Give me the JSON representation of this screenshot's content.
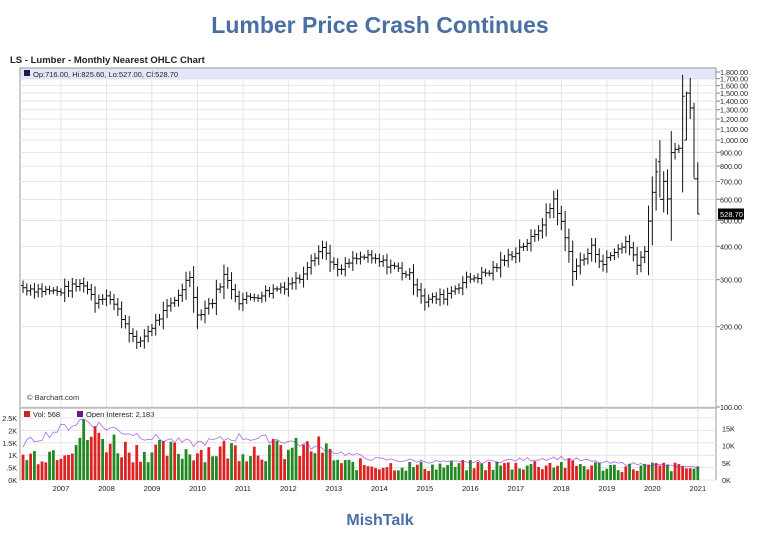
{
  "headline": "Lumber Price Crash Continues",
  "chart_title": "LS - Lumber - Monthly Nearest OHLC Chart",
  "footer": "MishTalk",
  "colors": {
    "accent": "#4a6fa5",
    "up": "#228822",
    "down": "#dd2222",
    "band": "#e3e7f9",
    "grid": "#e4e4e4"
  },
  "chart_data": [
    {
      "type": "ohlc",
      "info": "Op:716.00, Hi:825.60, Lo:527.00, Cl:528.70",
      "last_price_label": "528.70",
      "credit": "© Barchart.com",
      "y_scale": "log",
      "ylim": [
        100,
        1800
      ],
      "y_ticks": [
        "100.00",
        "200.00",
        "300.00",
        "400.00",
        "500.00",
        "600.00",
        "700.00",
        "800.00",
        "900.00",
        "1,000.00",
        "1,100.00",
        "1,200.00",
        "1,300.00",
        "1,400.00",
        "1,500.00",
        "1,600.00",
        "1,700.00",
        "1,800.00"
      ],
      "grid": true,
      "x_ticks": [
        "2007",
        "2008",
        "2009",
        "2010",
        "2011",
        "2012",
        "2013",
        "2014",
        "2015",
        "2016",
        "2017",
        "2018",
        "2019",
        "2020",
        "2021"
      ],
      "anchors": [
        [
          "2006-09",
          280
        ],
        [
          "2007-06",
          270
        ],
        [
          "2008-01",
          290
        ],
        [
          "2008-04",
          250
        ],
        [
          "2008-07",
          265
        ],
        [
          "2009-03",
          170
        ],
        [
          "2009-07",
          200
        ],
        [
          "2010-01",
          250
        ],
        [
          "2010-05",
          310
        ],
        [
          "2010-07",
          220
        ],
        [
          "2010-11",
          250
        ],
        [
          "2011-02",
          310
        ],
        [
          "2011-06",
          250
        ],
        [
          "2011-12",
          265
        ],
        [
          "2012-06",
          285
        ],
        [
          "2012-10",
          305
        ],
        [
          "2013-01",
          360
        ],
        [
          "2013-04",
          395
        ],
        [
          "2013-08",
          320
        ],
        [
          "2013-12",
          355
        ],
        [
          "2014-03",
          365
        ],
        [
          "2014-10",
          340
        ],
        [
          "2015-03",
          310
        ],
        [
          "2015-07",
          250
        ],
        [
          "2015-12",
          260
        ],
        [
          "2016-06",
          300
        ],
        [
          "2016-12",
          320
        ],
        [
          "2017-05",
          365
        ],
        [
          "2017-12",
          435
        ],
        [
          "2018-03",
          520
        ],
        [
          "2018-05",
          600
        ],
        [
          "2018-08",
          430
        ],
        [
          "2018-10",
          330
        ],
        [
          "2019-01",
          360
        ],
        [
          "2019-03",
          395
        ],
        [
          "2019-06",
          345
        ],
        [
          "2019-09",
          380
        ],
        [
          "2019-12",
          415
        ],
        [
          "2020-03",
          350
        ],
        [
          "2020-05",
          380
        ],
        [
          "2020-07",
          640
        ],
        [
          "2020-09",
          840
        ],
        [
          "2020-11",
          590
        ],
        [
          "2020-12",
          880
        ],
        [
          "2021-02",
          960
        ],
        [
          "2021-03",
          1450
        ],
        [
          "2021-04",
          1450
        ],
        [
          "2021-05",
          1320
        ],
        [
          "2021-06",
          716
        ],
        [
          "2021-07",
          528.7
        ]
      ],
      "highlight_bars": [
        {
          "date": "2020-09",
          "open": 830,
          "high": 1000,
          "low": 610,
          "close": 600
        },
        {
          "date": "2021-04",
          "open": 1000,
          "high": 1520,
          "low": 1000,
          "close": 1500
        },
        {
          "date": "2021-05",
          "open": 1500,
          "high": 1711,
          "low": 1200,
          "close": 1320
        },
        {
          "date": "2021-06",
          "open": 1320,
          "high": 1380,
          "low": 720,
          "close": 716
        },
        {
          "date": "2021-07",
          "open": 716,
          "high": 825.6,
          "low": 527,
          "close": 528.7
        }
      ],
      "ohlc": [
        [
          "2006-09",
          285,
          300,
          265,
          280
        ],
        [
          "2006-10",
          280,
          295,
          255,
          268
        ],
        [
          "2007-03",
          265,
          280,
          245,
          262
        ],
        [
          "2007-09",
          270,
          290,
          255,
          285
        ],
        [
          "2008-01",
          285,
          310,
          270,
          295
        ],
        [
          "2008-04",
          270,
          280,
          230,
          245
        ],
        [
          "2008-07",
          255,
          280,
          245,
          265
        ],
        [
          "2008-12",
          220,
          235,
          195,
          205
        ],
        [
          "2009-03",
          180,
          190,
          160,
          170
        ],
        [
          "2009-07",
          185,
          210,
          180,
          200
        ],
        [
          "2010-01",
          240,
          270,
          230,
          255
        ],
        [
          "2010-05",
          300,
          330,
          260,
          270
        ],
        [
          "2010-07",
          235,
          245,
          195,
          215
        ],
        [
          "2011-02",
          285,
          330,
          280,
          310
        ],
        [
          "2012-06",
          280,
          300,
          270,
          290
        ],
        [
          "2013-04",
          380,
          400,
          330,
          345
        ],
        [
          "2014-03",
          360,
          375,
          345,
          355
        ],
        [
          "2015-07",
          260,
          275,
          230,
          245
        ],
        [
          "2017-12",
          420,
          460,
          410,
          440
        ],
        [
          "2018-05",
          580,
          650,
          560,
          610
        ],
        [
          "2018-10",
          330,
          350,
          300,
          320
        ],
        [
          "2020-03",
          360,
          375,
          260,
          290
        ]
      ]
    },
    {
      "type": "bar",
      "panel": "volume",
      "vol_label": "Vol: 568",
      "oi_label": "Open Interest: 2,183",
      "left_ticks": [
        "0K",
        ".5K",
        "1K",
        "1.5K",
        "2K",
        "2.5K"
      ],
      "right_ticks": [
        "0K",
        "5K",
        "10K",
        "15K"
      ],
      "volume_anchors": [
        [
          "2006-09",
          1000
        ],
        [
          "2007-06",
          1300
        ],
        [
          "2008-01",
          2000
        ],
        [
          "2008-06",
          1850
        ],
        [
          "2009-01",
          1300
        ],
        [
          "2010-01",
          1250
        ],
        [
          "2011-06",
          1350
        ],
        [
          "2012-06",
          1300
        ],
        [
          "2013-04",
          1400
        ],
        [
          "2013-09",
          700
        ],
        [
          "2015-06",
          600
        ],
        [
          "2017-06",
          650
        ],
        [
          "2018-06",
          700
        ],
        [
          "2020-01",
          550
        ],
        [
          "2020-09",
          600
        ],
        [
          "2021-07",
          500
        ]
      ],
      "open_interest_anchors": [
        [
          "2006-09",
          10500
        ],
        [
          "2008-01",
          17500
        ],
        [
          "2008-06",
          15500
        ],
        [
          "2009-06",
          12500
        ],
        [
          "2010-06",
          10500
        ],
        [
          "2011-06",
          12500
        ],
        [
          "2012-06",
          11500
        ],
        [
          "2013-06",
          8500
        ],
        [
          "2014-06",
          6000
        ],
        [
          "2016-06",
          5000
        ],
        [
          "2018-06",
          6500
        ],
        [
          "2019-06",
          5000
        ],
        [
          "2020-06",
          4500
        ],
        [
          "2021-07",
          3500
        ]
      ]
    }
  ]
}
